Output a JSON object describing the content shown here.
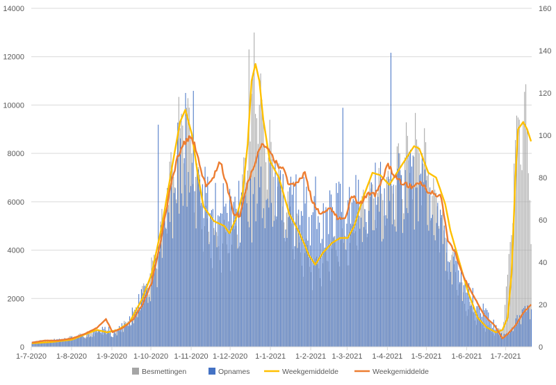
{
  "chart_data": {
    "type": "bar",
    "title": "",
    "xlabel": "",
    "ylabel_left": "",
    "ylabel_right": "",
    "y_left_range": [
      0,
      14000
    ],
    "y_right_range": [
      0,
      160
    ],
    "y_left_ticks": [
      "0",
      "2000",
      "4000",
      "6000",
      "8000",
      "10000",
      "12000",
      "14000"
    ],
    "y_right_ticks": [
      "0",
      "20",
      "40",
      "60",
      "80",
      "100",
      "120",
      "140",
      "160"
    ],
    "x_start": "1-7-2020",
    "x_tick_labels": [
      "1-7-2020",
      "1-8-2020",
      "1-9-2020",
      "1-10-2020",
      "1-11-2020",
      "1-12-2020",
      "1-1-2021",
      "1-2-2021",
      "1-3-2021",
      "1-4-2021",
      "1-5-2021",
      "1-6-2021",
      "1-7-2021"
    ],
    "x_tick_days": [
      0,
      31,
      62,
      92,
      123,
      153,
      184,
      215,
      243,
      274,
      304,
      335,
      365
    ],
    "num_days": 385,
    "grid": true,
    "legend_position": "bottom",
    "legend": [
      {
        "label": "Besmettingen",
        "marker": "box",
        "color": "#A5A5A5"
      },
      {
        "label": "Opnames",
        "marker": "box",
        "color": "#4472C4"
      },
      {
        "label": "Weekgemiddelde",
        "marker": "line",
        "color": "#FFC000"
      },
      {
        "label": "Weekgemiddelde",
        "marker": "line",
        "color": "#ED7D31"
      }
    ],
    "series": [
      {
        "name": "Besmettingen",
        "type": "bar",
        "axis": "left",
        "color": "#A5A5A5",
        "weekly_peak_keypoints": [
          [
            0,
            180
          ],
          [
            20,
            280
          ],
          [
            31,
            500
          ],
          [
            45,
            650
          ],
          [
            55,
            750
          ],
          [
            62,
            600
          ],
          [
            70,
            1000
          ],
          [
            78,
            1500
          ],
          [
            85,
            2600
          ],
          [
            92,
            3600
          ],
          [
            100,
            5700
          ],
          [
            108,
            8300
          ],
          [
            114,
            10300
          ],
          [
            118,
            11000
          ],
          [
            122,
            9800
          ],
          [
            128,
            8000
          ],
          [
            135,
            5600
          ],
          [
            145,
            5100
          ],
          [
            153,
            5000
          ],
          [
            160,
            6200
          ],
          [
            168,
            10500
          ],
          [
            171,
            12900
          ],
          [
            175,
            12000
          ],
          [
            182,
            9500
          ],
          [
            190,
            7300
          ],
          [
            200,
            6100
          ],
          [
            210,
            4700
          ],
          [
            218,
            3600
          ],
          [
            225,
            4100
          ],
          [
            235,
            4800
          ],
          [
            243,
            4900
          ],
          [
            255,
            6900
          ],
          [
            265,
            7600
          ],
          [
            275,
            7900
          ],
          [
            288,
            9000
          ],
          [
            295,
            9600
          ],
          [
            304,
            8600
          ],
          [
            310,
            7300
          ],
          [
            320,
            4600
          ],
          [
            335,
            2000
          ],
          [
            350,
            900
          ],
          [
            358,
            700
          ],
          [
            362,
            1000
          ],
          [
            366,
            3000
          ],
          [
            370,
            7500
          ],
          [
            375,
            11200
          ],
          [
            380,
            11000
          ],
          [
            384,
            7000
          ]
        ],
        "spike_days": [
          [
            171,
            13000
          ],
          [
            167,
            12300
          ]
        ]
      },
      {
        "name": "Opnames",
        "type": "bar",
        "axis": "right",
        "color": "#4472C4",
        "daily_peak_keypoints": [
          [
            0,
            3
          ],
          [
            20,
            4
          ],
          [
            31,
            5
          ],
          [
            45,
            7
          ],
          [
            55,
            12
          ],
          [
            62,
            8
          ],
          [
            70,
            12
          ],
          [
            78,
            20
          ],
          [
            85,
            30
          ],
          [
            92,
            40
          ],
          [
            100,
            62
          ],
          [
            108,
            90
          ],
          [
            115,
            100
          ],
          [
            120,
            104
          ],
          [
            125,
            100
          ],
          [
            130,
            93
          ],
          [
            135,
            85
          ],
          [
            145,
            82
          ],
          [
            153,
            74
          ],
          [
            160,
            84
          ],
          [
            170,
            90
          ],
          [
            178,
            101
          ],
          [
            183,
            95
          ],
          [
            190,
            88
          ],
          [
            200,
            84
          ],
          [
            210,
            80
          ],
          [
            220,
            84
          ],
          [
            230,
            82
          ],
          [
            243,
            79
          ],
          [
            255,
            84
          ],
          [
            265,
            90
          ],
          [
            274,
            89
          ],
          [
            280,
            92
          ],
          [
            288,
            95
          ],
          [
            295,
            95
          ],
          [
            304,
            91
          ],
          [
            312,
            80
          ],
          [
            320,
            55
          ],
          [
            330,
            40
          ],
          [
            340,
            27
          ],
          [
            350,
            18
          ],
          [
            358,
            11
          ],
          [
            362,
            7
          ],
          [
            366,
            9
          ],
          [
            375,
            18
          ],
          [
            384,
            24
          ]
        ],
        "spike_days": [
          [
            276,
            139
          ],
          [
            97,
            105
          ],
          [
            112,
            106
          ],
          [
            118,
            120
          ],
          [
            124,
            121
          ],
          [
            239,
            113
          ]
        ]
      },
      {
        "name": "Weekgemiddelde",
        "type": "line",
        "axis": "left",
        "color": "#FFC000",
        "keypoints": [
          [
            0,
            150
          ],
          [
            15,
            200
          ],
          [
            31,
            300
          ],
          [
            40,
            500
          ],
          [
            50,
            700
          ],
          [
            58,
            600
          ],
          [
            66,
            700
          ],
          [
            75,
            1000
          ],
          [
            85,
            2000
          ],
          [
            92,
            3000
          ],
          [
            100,
            5000
          ],
          [
            108,
            7500
          ],
          [
            114,
            9300
          ],
          [
            118,
            9800
          ],
          [
            123,
            8800
          ],
          [
            128,
            7000
          ],
          [
            132,
            5800
          ],
          [
            140,
            5200
          ],
          [
            148,
            5000
          ],
          [
            152,
            4700
          ],
          [
            157,
            5300
          ],
          [
            162,
            6300
          ],
          [
            166,
            8400
          ],
          [
            169,
            11000
          ],
          [
            172,
            11700
          ],
          [
            175,
            11000
          ],
          [
            178,
            9400
          ],
          [
            183,
            7700
          ],
          [
            190,
            7000
          ],
          [
            198,
            5500
          ],
          [
            205,
            4800
          ],
          [
            210,
            4200
          ],
          [
            213,
            3800
          ],
          [
            218,
            3400
          ],
          [
            224,
            3900
          ],
          [
            231,
            4300
          ],
          [
            237,
            4500
          ],
          [
            243,
            4500
          ],
          [
            248,
            5000
          ],
          [
            255,
            6200
          ],
          [
            262,
            7200
          ],
          [
            268,
            7100
          ],
          [
            275,
            6700
          ],
          [
            282,
            7300
          ],
          [
            288,
            7800
          ],
          [
            294,
            8300
          ],
          [
            298,
            8200
          ],
          [
            305,
            7200
          ],
          [
            311,
            7000
          ],
          [
            318,
            5900
          ],
          [
            322,
            4800
          ],
          [
            330,
            3300
          ],
          [
            336,
            2200
          ],
          [
            343,
            1200
          ],
          [
            350,
            800
          ],
          [
            357,
            600
          ],
          [
            362,
            700
          ],
          [
            366,
            1200
          ],
          [
            369,
            3000
          ],
          [
            372,
            7000
          ],
          [
            374,
            9000
          ],
          [
            378,
            9300
          ],
          [
            381,
            9000
          ],
          [
            384,
            8500
          ]
        ]
      },
      {
        "name": "Weekgemiddelde",
        "type": "line",
        "axis": "right",
        "color": "#ED7D31",
        "keypoints": [
          [
            0,
            2
          ],
          [
            10,
            3
          ],
          [
            20,
            3
          ],
          [
            31,
            4
          ],
          [
            40,
            6
          ],
          [
            50,
            9
          ],
          [
            57,
            13
          ],
          [
            62,
            7
          ],
          [
            70,
            9
          ],
          [
            78,
            13
          ],
          [
            85,
            20
          ],
          [
            92,
            30
          ],
          [
            100,
            53
          ],
          [
            107,
            77
          ],
          [
            112,
            89
          ],
          [
            117,
            96
          ],
          [
            122,
            100
          ],
          [
            126,
            94
          ],
          [
            129,
            86
          ],
          [
            134,
            76
          ],
          [
            140,
            81
          ],
          [
            145,
            88
          ],
          [
            150,
            76
          ],
          [
            155,
            63
          ],
          [
            160,
            62
          ],
          [
            166,
            78
          ],
          [
            170,
            84
          ],
          [
            176,
            95
          ],
          [
            182,
            93
          ],
          [
            188,
            87
          ],
          [
            194,
            83
          ],
          [
            198,
            76
          ],
          [
            204,
            77
          ],
          [
            210,
            82
          ],
          [
            216,
            68
          ],
          [
            222,
            63
          ],
          [
            230,
            66
          ],
          [
            236,
            60
          ],
          [
            242,
            62
          ],
          [
            246,
            72
          ],
          [
            252,
            67
          ],
          [
            258,
            72
          ],
          [
            264,
            72
          ],
          [
            270,
            80
          ],
          [
            274,
            86
          ],
          [
            280,
            80
          ],
          [
            286,
            77
          ],
          [
            292,
            76
          ],
          [
            298,
            78
          ],
          [
            304,
            74
          ],
          [
            310,
            72
          ],
          [
            315,
            71
          ],
          [
            320,
            50
          ],
          [
            326,
            44
          ],
          [
            332,
            33
          ],
          [
            340,
            24
          ],
          [
            348,
            15
          ],
          [
            356,
            10
          ],
          [
            362,
            4
          ],
          [
            366,
            6
          ],
          [
            372,
            10
          ],
          [
            378,
            16
          ],
          [
            384,
            20
          ]
        ]
      }
    ]
  }
}
